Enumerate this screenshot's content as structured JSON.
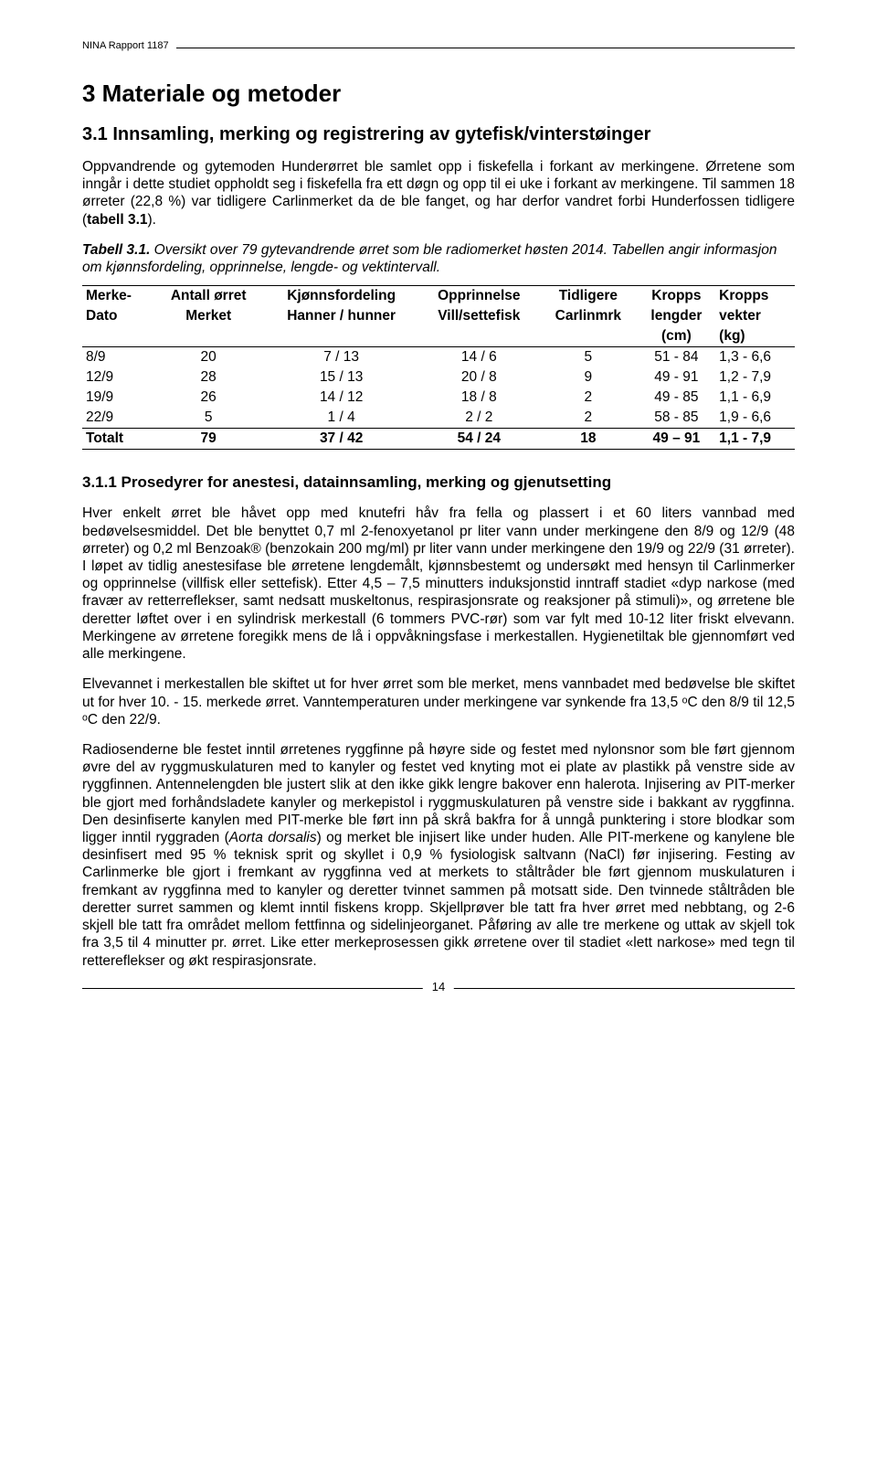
{
  "header": {
    "report_label": "NINA Rapport 1187"
  },
  "section": {
    "title": "3  Materiale og metoder",
    "sub_title": "3.1 Innsamling, merking og registrering av gytefisk/vinterstøinger",
    "para1": "Oppvandrende og gytemoden Hunderørret ble samlet opp i fiskefella i forkant av merkingene. Ørretene som inngår i dette studiet oppholdt seg i fiskefella fra ett døgn og opp til ei uke i forkant av merkingene. Til sammen 18 ørreter (22,8 %) var tidligere Carlinmerket da de ble fanget, og har derfor vandret forbi Hunderfossen tidligere (",
    "para1_bold": "tabell 3.1",
    "para1_end": ")."
  },
  "table": {
    "caption_bold": "Tabell 3.1.",
    "caption_rest": " Oversikt over 79 gytevandrende ørret som ble radiomerket høsten 2014. Tabellen angir informasjon om kjønnsfordeling, opprinnelse, lengde- og vektintervall.",
    "headers_row1": [
      "Merke-",
      "Antall ørret",
      "Kjønnsfordeling",
      "Opprinnelse",
      "Tidligere",
      "Kropps",
      "Kropps"
    ],
    "headers_row2": [
      "Dato",
      "Merket",
      "Hanner / hunner",
      "Vill/settefisk",
      "Carlinmrk",
      "lengder",
      "vekter"
    ],
    "headers_row3": [
      "",
      "",
      "",
      "",
      "",
      "(cm)",
      "(kg)"
    ],
    "rows": [
      [
        "8/9",
        "20",
        "7 / 13",
        "14 / 6",
        "5",
        "51 - 84",
        "1,3 - 6,6"
      ],
      [
        "12/9",
        "28",
        "15 / 13",
        "20 / 8",
        "9",
        "49 - 91",
        "1,2 - 7,9"
      ],
      [
        "19/9",
        "26",
        "14 / 12",
        "18 / 8",
        "2",
        "49 - 85",
        "1,1 - 6,9"
      ],
      [
        "22/9",
        "5",
        "1 / 4",
        "2 / 2",
        "2",
        "58 - 85",
        "1,9 - 6,6"
      ]
    ],
    "total": [
      "Totalt",
      "79",
      "37 / 42",
      "54 / 24",
      "18",
      "49 – 91",
      "1,1 - 7,9"
    ]
  },
  "subsub": {
    "title": "3.1.1 Prosedyrer for anestesi, datainnsamling, merking og gjenutsetting",
    "p1": "Hver enkelt ørret ble håvet opp med knutefri håv fra fella og plassert i et 60 liters vannbad med bedøvelsesmiddel. Det ble benyttet 0,7 ml 2-fenoxyetanol pr liter vann under merkingene den 8/9 og 12/9 (48 ørreter) og 0,2 ml Benzoak® (benzokain 200 mg/ml) pr liter vann under merkingene den 19/9 og 22/9 (31 ørreter). I løpet av tidlig anestesifase ble ørretene lengdemålt, kjønnsbestemt og undersøkt med hensyn til Carlinmerker og opprinnelse (villfisk eller settefisk). Etter 4,5 – 7,5 minutters induksjonstid inntraff stadiet «dyp narkose (med fravær av retterreflekser, samt nedsatt muskeltonus, respirasjonsrate og reaksjoner på stimuli)», og ørretene ble deretter løftet over i en sylindrisk merkestall (6 tommers PVC-rør) som var fylt med 10-12 liter friskt elvevann. Merkingene av ørretene foregikk mens de lå i oppvåkningsfase i merkestallen. Hygienetiltak ble gjennomført ved alle merkingene.",
    "p2": "Elvevannet i merkestallen ble skiftet ut for hver ørret som ble merket, mens vannbadet med bedøvelse ble skiftet ut for hver 10. - 15. merkede ørret. Vanntemperaturen under merkingene var synkende fra 13,5 ᵒC den 8/9 til 12,5 ᵒC den 22/9.",
    "p3a": "Radiosenderne ble festet inntil ørretenes ryggfinne på høyre side og festet med nylonsnor som ble ført gjennom øvre del av ryggmuskulaturen med to kanyler og festet ved knyting mot ei plate av plastikk på venstre side av ryggfinnen. Antennelengden ble justert slik at den ikke gikk lengre bakover enn halerota. Injisering av PIT-merker ble gjort med forhåndsladete kanyler og merkepistol i ryggmuskulaturen på venstre side i bakkant av ryggfinna. Den desinfiserte kanylen med PIT-merke ble ført inn på skrå bakfra for å unngå punktering i store blodkar som ligger inntil ryggraden (",
    "p3_italic": "Aorta dorsalis",
    "p3b": ") og merket ble injisert like under huden. Alle PIT-merkene og kanylene ble desinfisert med 95 % teknisk sprit og skyllet i 0,9 % fysiologisk saltvann (NaCl) før injisering. Festing av Carlinmerke ble gjort i fremkant av ryggfinna ved at merkets to ståltråder ble ført gjennom muskulaturen i fremkant av ryggfinna med to kanyler og deretter tvinnet sammen på motsatt side. Den tvinnede ståltråden ble deretter surret sammen og klemt inntil fiskens kropp. Skjellprøver ble tatt fra hver ørret med nebbtang, og 2-6 skjell ble tatt fra området mellom fettfinna og sidelinjeorganet. Påføring av alle tre merkene og uttak av skjell tok fra 3,5 til 4 minutter pr. ørret. Like etter merkeprosessen gikk ørretene over til stadiet «lett narkose» med tegn til rettereflekser og økt respirasjonsrate."
  },
  "footer": {
    "page_number": "14"
  }
}
